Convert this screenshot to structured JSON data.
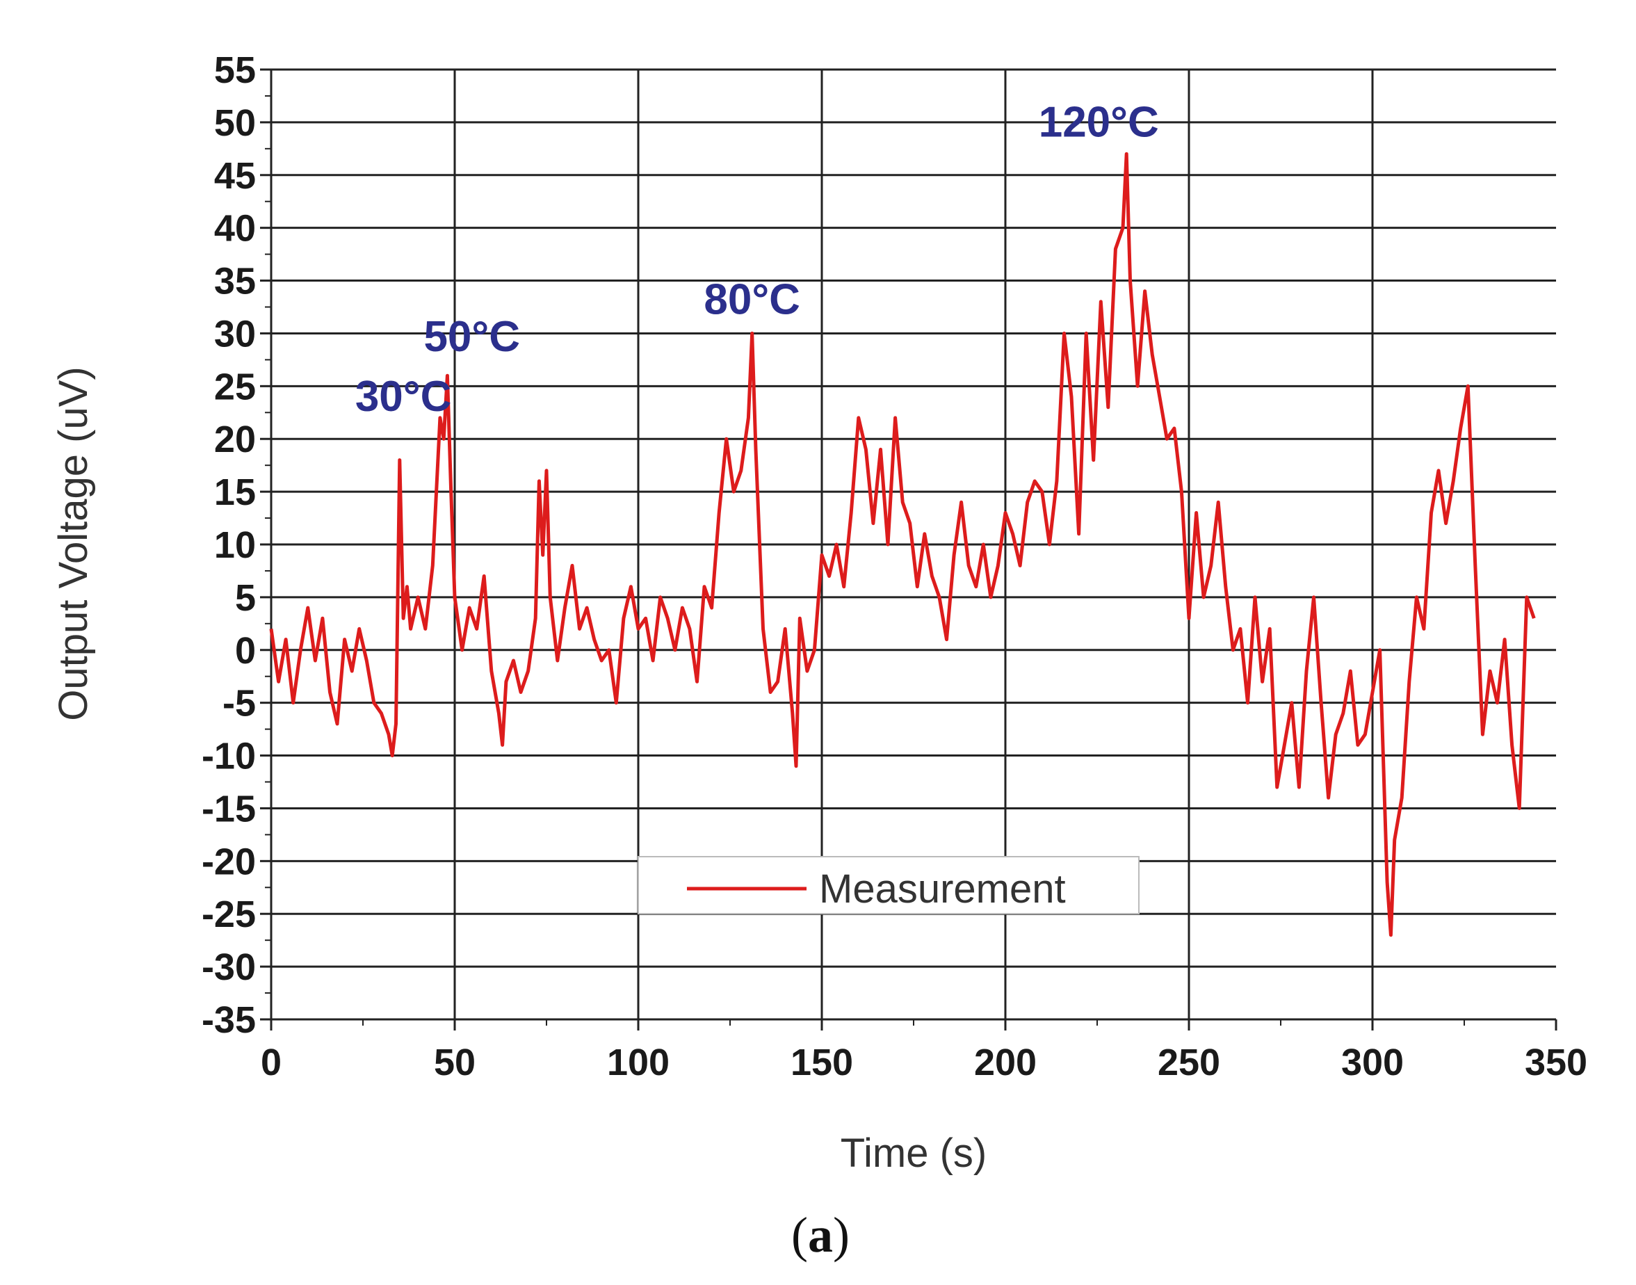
{
  "chart_data": {
    "type": "line",
    "xlabel": "Time (s)",
    "ylabel": "Output Voltage (uV)",
    "xlim": [
      0,
      350
    ],
    "ylim": [
      -35,
      55
    ],
    "x_ticks": [
      "0",
      "50",
      "100",
      "150",
      "200",
      "250",
      "300",
      "350"
    ],
    "y_ticks": [
      "55",
      "50",
      "45",
      "40",
      "35",
      "30",
      "25",
      "20",
      "15",
      "10",
      "5",
      "0",
      "-5",
      "-10",
      "-15",
      "-20",
      "-25",
      "-30",
      "-35"
    ],
    "grid": true,
    "legend": {
      "position": "bottom-center",
      "entries": [
        "Measurement"
      ]
    },
    "annotations": [
      {
        "text": "30°C",
        "x": 36,
        "y": 20
      },
      {
        "text": "50°C",
        "x": 49,
        "y": 26
      },
      {
        "text": "80°C",
        "x": 131,
        "y": 30
      },
      {
        "text": "120°C",
        "x": 233,
        "y": 47
      }
    ],
    "series": [
      {
        "name": "Measurement",
        "color": "#dd1c1c",
        "x": [
          0,
          2,
          4,
          6,
          8,
          10,
          12,
          14,
          16,
          18,
          20,
          22,
          24,
          26,
          28,
          30,
          32,
          33,
          34,
          35,
          36,
          37,
          38,
          40,
          42,
          44,
          46,
          47,
          48,
          49,
          50,
          52,
          54,
          56,
          58,
          60,
          62,
          63,
          64,
          66,
          68,
          70,
          72,
          73,
          74,
          75,
          76,
          78,
          80,
          82,
          84,
          86,
          88,
          90,
          92,
          94,
          96,
          98,
          100,
          102,
          104,
          106,
          108,
          110,
          112,
          114,
          116,
          118,
          120,
          122,
          124,
          126,
          128,
          130,
          131,
          132,
          134,
          136,
          138,
          140,
          142,
          143,
          144,
          146,
          148,
          150,
          152,
          154,
          156,
          158,
          160,
          162,
          164,
          166,
          168,
          170,
          172,
          174,
          176,
          178,
          180,
          182,
          184,
          186,
          188,
          190,
          192,
          194,
          196,
          198,
          200,
          202,
          204,
          206,
          208,
          210,
          212,
          214,
          216,
          218,
          220,
          222,
          224,
          226,
          228,
          230,
          232,
          233,
          234,
          236,
          238,
          240,
          242,
          244,
          246,
          248,
          250,
          252,
          254,
          256,
          258,
          260,
          262,
          264,
          266,
          268,
          270,
          272,
          274,
          276,
          278,
          280,
          282,
          284,
          286,
          288,
          290,
          292,
          294,
          296,
          298,
          300,
          302,
          304,
          305,
          306,
          308,
          310,
          312,
          314,
          316,
          318,
          320,
          322,
          324,
          326,
          328,
          330,
          332,
          334,
          336,
          338,
          340,
          342,
          344
        ],
        "values": [
          2,
          -3,
          1,
          -5,
          0,
          4,
          -1,
          3,
          -4,
          -7,
          1,
          -2,
          2,
          -1,
          -5,
          -6,
          -8,
          -10,
          -7,
          18,
          3,
          6,
          2,
          5,
          2,
          8,
          22,
          20,
          26,
          15,
          5,
          0,
          4,
          2,
          7,
          -2,
          -6,
          -9,
          -3,
          -1,
          -4,
          -2,
          3,
          16,
          9,
          17,
          5,
          -1,
          4,
          8,
          2,
          4,
          1,
          -1,
          0,
          -5,
          3,
          6,
          2,
          3,
          -1,
          5,
          3,
          0,
          4,
          2,
          -3,
          6,
          4,
          13,
          20,
          15,
          17,
          22,
          30,
          19,
          2,
          -4,
          -3,
          2,
          -6,
          -11,
          3,
          -2,
          0,
          9,
          7,
          10,
          6,
          13,
          22,
          19,
          12,
          19,
          10,
          22,
          14,
          12,
          6,
          11,
          7,
          5,
          1,
          9,
          14,
          8,
          6,
          10,
          5,
          8,
          13,
          11,
          8,
          14,
          16,
          15,
          10,
          16,
          30,
          24,
          11,
          30,
          18,
          33,
          23,
          38,
          40,
          47,
          35,
          25,
          34,
          28,
          24,
          20,
          21,
          15,
          3,
          13,
          5,
          8,
          14,
          6,
          0,
          2,
          -5,
          5,
          -3,
          2,
          -13,
          -9,
          -5,
          -13,
          -2,
          5,
          -5,
          -14,
          -8,
          -6,
          -2,
          -9,
          -8,
          -4,
          0,
          -22,
          -27,
          -18,
          -14,
          -3,
          5,
          2,
          13,
          17,
          12,
          16,
          21,
          25,
          8,
          -8,
          -2,
          -5,
          1,
          -9,
          -15,
          5,
          3
        ]
      }
    ]
  },
  "caption": {
    "open": "(",
    "letter": "a",
    "close": ")"
  }
}
